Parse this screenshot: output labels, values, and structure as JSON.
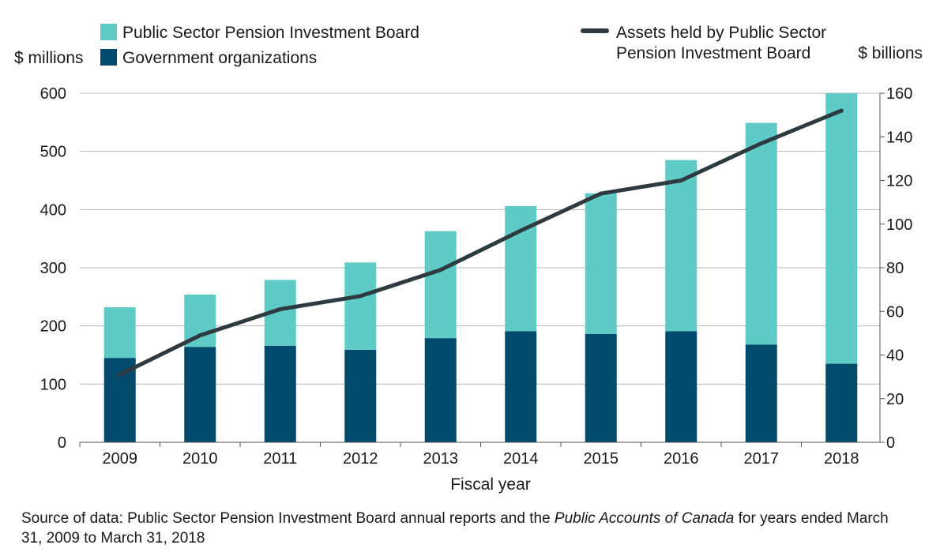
{
  "chart_data": {
    "type": "bar",
    "stacked": true,
    "categories": [
      "2009",
      "2010",
      "2011",
      "2012",
      "2013",
      "2014",
      "2015",
      "2016",
      "2017",
      "2018"
    ],
    "series": [
      {
        "name": "Government organizations",
        "color": "#004a6c",
        "axis": "left",
        "values": [
          145,
          164,
          166,
          159,
          179,
          191,
          186,
          191,
          168,
          135
        ]
      },
      {
        "name": "Public Sector Pension Investment Board",
        "color": "#5ecbc6",
        "axis": "left",
        "values": [
          87,
          90,
          113,
          150,
          184,
          215,
          242,
          294,
          381,
          465
        ]
      }
    ],
    "line_series": {
      "name_lines": [
        "Assets held by Public Sector",
        "Pension Investment Board"
      ],
      "color": "#2d3a40",
      "axis": "right",
      "values": [
        31,
        49,
        61,
        67,
        79,
        97,
        114,
        120,
        137,
        152
      ]
    },
    "y_left": {
      "unit": "$ millions",
      "ylim": [
        0,
        600
      ],
      "ticks": [
        "0",
        "100",
        "200",
        "300",
        "400",
        "500",
        "600"
      ]
    },
    "y_right": {
      "unit": "$ billions",
      "ylim": [
        0,
        160
      ],
      "ticks": [
        "0",
        "20",
        "40",
        "60",
        "80",
        "100",
        "120",
        "140",
        "160"
      ]
    },
    "xlabel": "Fiscal year",
    "grid": true,
    "legend_position": "top"
  },
  "source": {
    "prefix": "Source of data: Public Sector Pension Investment Board annual reports and the ",
    "italic": "Public Accounts of Canada",
    "suffix": " for years ended March 31, 2009 to March 31, 2018"
  }
}
